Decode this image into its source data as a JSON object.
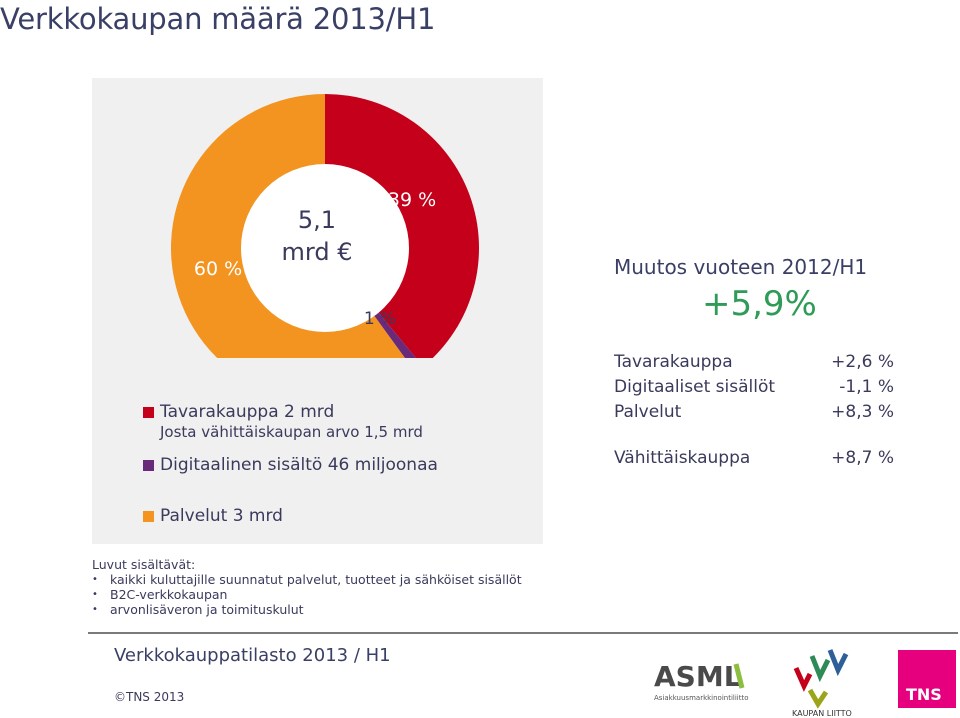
{
  "title": "Verkkokaupan määrä 2013/H1",
  "chart_data": {
    "type": "pie",
    "categories": [
      "Palvelut",
      "Tavarakauppa",
      "Digitaalinen sisältö"
    ],
    "values": [
      60,
      39,
      1
    ],
    "unit": "%",
    "colors": [
      "#f39320",
      "#c4001a",
      "#6a2a7a"
    ],
    "data_labels": [
      "60 %",
      "39 %",
      "1 %"
    ],
    "center_label_line1": "5,1",
    "center_label_line2": "mrd €"
  },
  "legend": {
    "goods_label": "Tavarakauppa 2 mrd",
    "goods_sub": "Josta vähittäiskaupan arvo 1,5 mrd",
    "digital_label": "Digitaalinen sisältö 46 miljoonaa",
    "services_label": "Palvelut 3 mrd"
  },
  "changes": {
    "title": "Muutos vuoteen 2012/H1",
    "total": "+5,9%",
    "rows": [
      {
        "label": "Tavarakauppa",
        "value": "+2,6 %"
      },
      {
        "label": "Digitaaliset sisällöt",
        "value": "-1,1 %"
      },
      {
        "label": "Palvelut",
        "value": "+8,3 %"
      },
      {
        "label": "Vähittäiskauppa",
        "value": "+8,7 %"
      }
    ]
  },
  "notes": {
    "heading": "Luvut sisältävät:",
    "items": [
      "kaikki kuluttajille suunnatut palvelut, tuotteet ja sähköiset sisällöt",
      "B2C-verkkokaupan",
      "arvonlisäveron ja toimituskulut"
    ]
  },
  "footer": {
    "title": "Verkkokauppatilasto 2013 / H1",
    "copyright": "©TNS 2013"
  },
  "logos": {
    "asml": "ASML",
    "asml_sub": "Asiakkuusmarkkinointiliitto",
    "kaupan_liitto": "KAUPAN LIITTO",
    "tns": "TNS"
  }
}
